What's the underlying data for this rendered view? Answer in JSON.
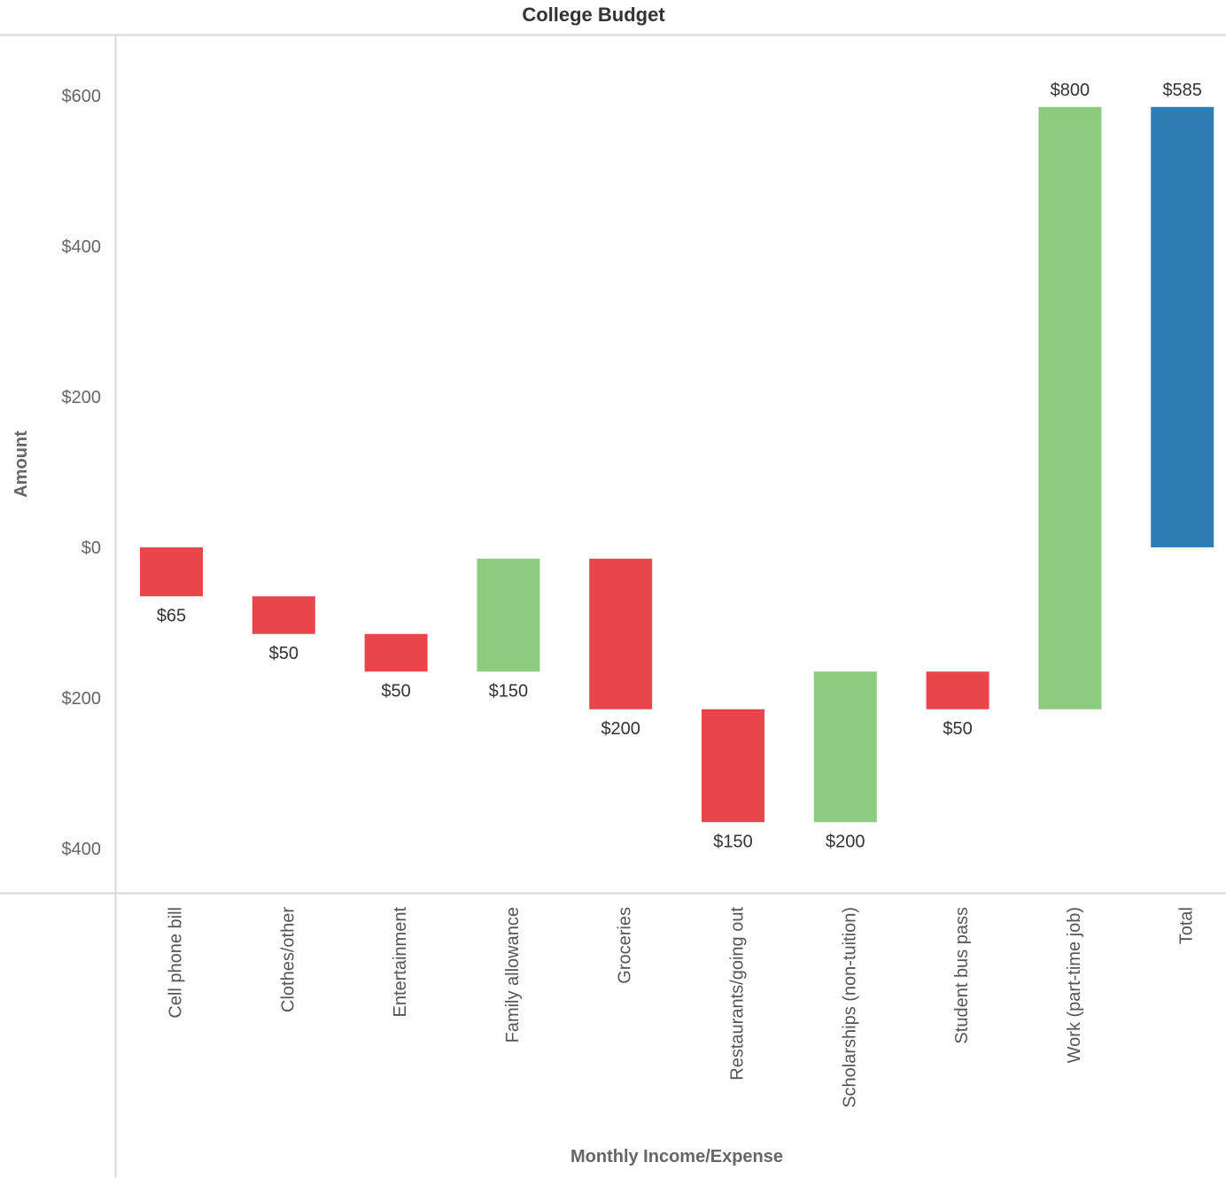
{
  "chart_data": {
    "type": "waterfall",
    "title": "College Budget",
    "xlabel": "Monthly Income/Expense",
    "ylabel": "Amount",
    "ylim": [
      -470,
      690
    ],
    "yticks": [
      600,
      400,
      200,
      0,
      -200,
      -400
    ],
    "ytick_labels": [
      "$600",
      "$400",
      "$200",
      "$0",
      "$200",
      "$400"
    ],
    "grid": false,
    "categories": [
      "Cell phone bill",
      "Clothes/other",
      "Entertainment",
      "Family allowance",
      "Groceries",
      "Restaurants/going out",
      "Scholarships (non-tuition)",
      "Student bus pass",
      "Work (part-time job)",
      "Total"
    ],
    "values": [
      -65,
      -50,
      -50,
      150,
      -200,
      -150,
      200,
      -50,
      800,
      585
    ],
    "data_labels": [
      "$65",
      "$50",
      "$50",
      "$150",
      "$200",
      "$150",
      "$200",
      "$50",
      "$800",
      "$585"
    ],
    "kinds": [
      "expense",
      "expense",
      "expense",
      "income",
      "expense",
      "expense",
      "income",
      "expense",
      "income",
      "total"
    ],
    "colors": {
      "expense": "#e8464a",
      "income": "#8ccb80",
      "total": "#2f7eb3"
    }
  }
}
